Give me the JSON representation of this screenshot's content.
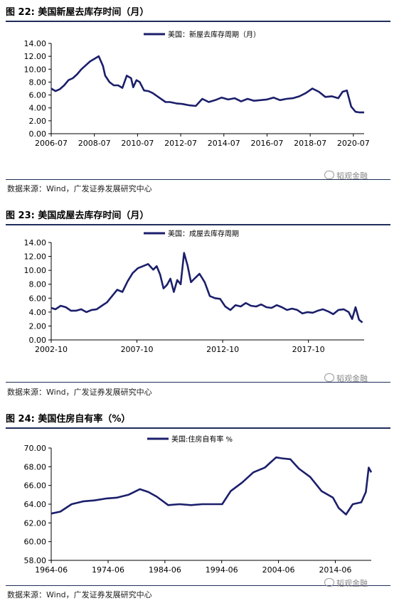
{
  "figures": [
    {
      "title": "图 22:  美国新屋去库存时间（月）",
      "source": "数据来源：Wind，广发证券发展研究中心",
      "watermark": "韬观金融",
      "chart_data": {
        "type": "line",
        "title": "图 22:  美国新屋去库存时间（月）",
        "xlabel": "",
        "ylabel": "",
        "ylim": [
          0,
          14
        ],
        "yticks": [
          "0.00",
          "2.00",
          "4.00",
          "6.00",
          "8.00",
          "10.00",
          "12.00",
          "14.00"
        ],
        "xticks": [
          "2006-07",
          "2008-07",
          "2010-07",
          "2012-07",
          "2014-07",
          "2016-07",
          "2018-07",
          "2020-07"
        ],
        "x_start": 2006.5,
        "x_end": 2021.0,
        "legend": "top-center",
        "color": "#1b1f6b",
        "series": [
          {
            "name": "美国：新屋去库存周期（月）",
            "x": [
              2006.5,
              2006.7,
              2006.9,
              2007.1,
              2007.3,
              2007.5,
              2007.7,
              2007.9,
              2008.1,
              2008.3,
              2008.5,
              2008.7,
              2008.9,
              2009.0,
              2009.2,
              2009.4,
              2009.6,
              2009.8,
              2010.0,
              2010.2,
              2010.3,
              2010.45,
              2010.6,
              2010.8,
              2011.0,
              2011.2,
              2011.5,
              2011.8,
              2012.0,
              2012.3,
              2012.6,
              2012.9,
              2013.2,
              2013.5,
              2013.8,
              2014.1,
              2014.4,
              2014.7,
              2015.0,
              2015.3,
              2015.6,
              2015.9,
              2016.2,
              2016.5,
              2016.8,
              2017.1,
              2017.4,
              2017.7,
              2018.0,
              2018.3,
              2018.6,
              2018.9,
              2019.2,
              2019.5,
              2019.8,
              2020.0,
              2020.2,
              2020.4,
              2020.6,
              2020.8,
              2021.0
            ],
            "values": [
              7.0,
              6.6,
              6.9,
              7.5,
              8.3,
              8.6,
              9.2,
              10.0,
              10.6,
              11.2,
              11.6,
              12.0,
              10.5,
              9.0,
              8.0,
              7.5,
              7.5,
              7.1,
              9.0,
              8.6,
              7.2,
              8.3,
              8.0,
              6.7,
              6.6,
              6.3,
              5.6,
              4.9,
              4.9,
              4.7,
              4.6,
              4.4,
              4.3,
              5.4,
              4.9,
              5.2,
              5.6,
              5.3,
              5.5,
              5.0,
              5.4,
              5.1,
              5.2,
              5.3,
              5.6,
              5.2,
              5.4,
              5.5,
              5.8,
              6.3,
              7.0,
              6.5,
              5.7,
              5.8,
              5.5,
              6.5,
              6.7,
              4.2,
              3.4,
              3.3,
              3.3
            ]
          }
        ]
      }
    },
    {
      "title": "图 23:  美国成屋去库存时间（月）",
      "source": "数据来源：Wind，广发证券发展研究中心",
      "watermark": "韬观金融",
      "chart_data": {
        "type": "line",
        "title": "图 23:  美国成屋去库存时间（月）",
        "xlabel": "",
        "ylabel": "",
        "ylim": [
          0,
          14
        ],
        "yticks": [
          "0.00",
          "2.00",
          "4.00",
          "6.00",
          "8.00",
          "10.00",
          "12.00",
          "14.00"
        ],
        "xticks": [
          "2002-10",
          "2007-10",
          "2012-10",
          "2017-10"
        ],
        "x_start": 2002.75,
        "x_end": 2021.0,
        "legend": "top-center",
        "color": "#1b1f6b",
        "series": [
          {
            "name": "美国：成屋去库存周期",
            "x": [
              2002.75,
              2003.0,
              2003.3,
              2003.6,
              2003.9,
              2004.2,
              2004.5,
              2004.8,
              2005.1,
              2005.4,
              2005.7,
              2006.0,
              2006.3,
              2006.6,
              2006.9,
              2007.2,
              2007.5,
              2007.8,
              2008.1,
              2008.4,
              2008.7,
              2008.9,
              2009.1,
              2009.3,
              2009.5,
              2009.7,
              2009.9,
              2010.1,
              2010.3,
              2010.5,
              2010.7,
              2010.9,
              2011.1,
              2011.4,
              2011.7,
              2012.0,
              2012.3,
              2012.6,
              2012.9,
              2013.2,
              2013.5,
              2013.8,
              2014.1,
              2014.4,
              2014.7,
              2015.0,
              2015.3,
              2015.6,
              2015.9,
              2016.2,
              2016.5,
              2016.8,
              2017.1,
              2017.4,
              2017.7,
              2018.0,
              2018.3,
              2018.6,
              2018.9,
              2019.2,
              2019.5,
              2019.8,
              2020.1,
              2020.3,
              2020.5,
              2020.7,
              2020.9
            ],
            "values": [
              4.6,
              4.4,
              4.9,
              4.7,
              4.2,
              4.2,
              4.4,
              4.0,
              4.3,
              4.4,
              4.9,
              5.4,
              6.3,
              7.2,
              6.9,
              8.4,
              9.6,
              10.3,
              10.6,
              10.9,
              10.1,
              10.6,
              9.4,
              7.4,
              7.9,
              8.8,
              6.9,
              8.6,
              8.0,
              12.5,
              10.7,
              8.3,
              8.8,
              9.5,
              8.3,
              6.3,
              6.0,
              5.9,
              4.8,
              4.3,
              5.0,
              4.8,
              5.3,
              4.9,
              4.8,
              5.1,
              4.7,
              4.6,
              5.0,
              4.7,
              4.3,
              4.5,
              4.3,
              3.8,
              4.0,
              3.9,
              4.2,
              4.4,
              4.1,
              3.7,
              4.3,
              4.4,
              4.0,
              3.0,
              4.7,
              2.9,
              2.5
            ]
          }
        ]
      }
    },
    {
      "title": "图 24:  美国住房自有率（%）",
      "source": "数据来源：Wind，广发证券发展研究中心",
      "watermark": "韬观金融",
      "chart_data": {
        "type": "line",
        "title": "图 24:  美国住房自有率（%）",
        "xlabel": "",
        "ylabel": "",
        "ylim": [
          58,
          70
        ],
        "yticks": [
          "58.00",
          "60.00",
          "62.00",
          "64.00",
          "66.00",
          "68.00",
          "70.00"
        ],
        "xticks": [
          "1964-06",
          "1974-06",
          "1984-06",
          "1994-06",
          "2004-06",
          "2014-06"
        ],
        "x_start": 1964.4,
        "x_end": 2020.75,
        "legend": "top-center",
        "color": "#1b1f6b",
        "series": [
          {
            "name": "美国:住房自有率 %",
            "x": [
              1964.4,
              1966.0,
              1968.0,
              1970.0,
              1972.0,
              1974.0,
              1976.0,
              1978.0,
              1980.0,
              1981.5,
              1983.0,
              1985.0,
              1987.0,
              1989.0,
              1991.0,
              1993.0,
              1994.5,
              1996.0,
              1998.0,
              2000.0,
              2002.0,
              2004.0,
              2005.0,
              2006.5,
              2008.0,
              2010.0,
              2012.0,
              2014.0,
              2015.0,
              2016.3,
              2017.5,
              2019.0,
              2019.8,
              2020.3,
              2020.75
            ],
            "values": [
              63.0,
              63.2,
              64.0,
              64.3,
              64.4,
              64.6,
              64.7,
              65.0,
              65.6,
              65.3,
              64.8,
              63.9,
              64.0,
              63.9,
              64.0,
              64.0,
              64.0,
              65.4,
              66.3,
              67.4,
              67.9,
              69.0,
              68.9,
              68.8,
              67.8,
              66.9,
              65.4,
              64.7,
              63.6,
              62.9,
              64.0,
              64.2,
              65.3,
              67.9,
              67.4
            ]
          }
        ]
      }
    }
  ]
}
